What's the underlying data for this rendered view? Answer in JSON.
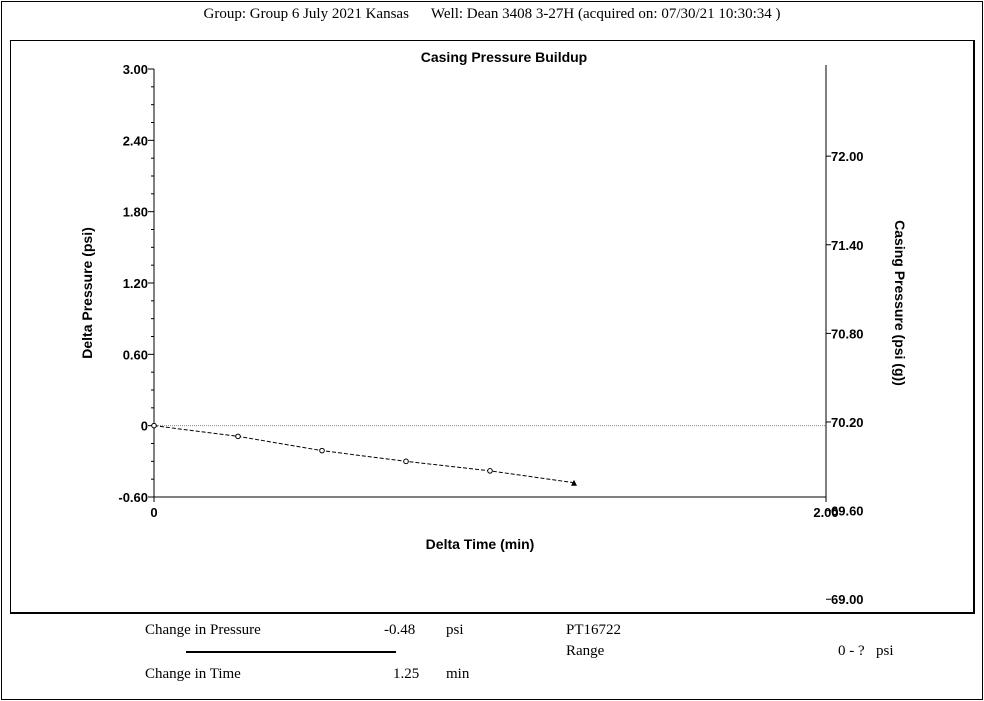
{
  "header": {
    "group": "Group: Group 6 July 2021 Kansas",
    "well": "Well: Dean 3408 3-27H (acquired on: 07/30/21 10:30:34 )"
  },
  "footer": {
    "pressure_label": "Change in Pressure",
    "pressure_value": "-0.48",
    "pressure_unit": "psi",
    "time_label": "Change in Time",
    "time_value": "1.25",
    "time_unit": "min",
    "sensor": "PT16722",
    "range_label": "Range",
    "range_value": "0 - ?",
    "range_unit": "psi"
  },
  "chart_data": {
    "type": "line",
    "title": "Casing Pressure Buildup",
    "xlabel": "Delta Time (min)",
    "ylabel": "Delta Pressure (psi)",
    "y2label": "Casing Pressure (psi (g))",
    "xlim": [
      0,
      2.0
    ],
    "ylim": [
      -0.6,
      3.0
    ],
    "y2lim": [
      68.9,
      72.8
    ],
    "x_ticks": [
      "0",
      "2.00"
    ],
    "y_ticks": [
      {
        "value": 3.0,
        "label": "3.00"
      },
      {
        "value": 2.4,
        "label": "2.40"
      },
      {
        "value": 1.8,
        "label": "1.80"
      },
      {
        "value": 1.2,
        "label": "1.20"
      },
      {
        "value": 0.6,
        "label": "0.60"
      },
      {
        "value": 0,
        "label": "0"
      },
      {
        "value": -0.6,
        "label": "-0.60"
      }
    ],
    "y2_ticks": [
      {
        "value": 72.0,
        "label": "72.00"
      },
      {
        "value": 71.4,
        "label": "71.40"
      },
      {
        "value": 70.8,
        "label": "70.80"
      },
      {
        "value": 70.2,
        "label": "70.20"
      },
      {
        "value": 69.6,
        "label": "69.60"
      },
      {
        "value": 69.0,
        "label": "69.00"
      }
    ],
    "series": [
      {
        "x": [
          0,
          0.25,
          0.5,
          0.75,
          1.0,
          1.25
        ],
        "y": [
          0,
          -0.09,
          -0.21,
          -0.3,
          -0.38,
          -0.48
        ]
      }
    ],
    "reference_line_y": 0,
    "grid": false
  }
}
